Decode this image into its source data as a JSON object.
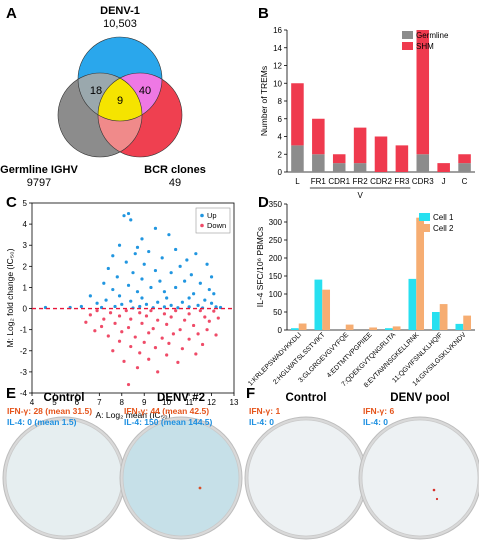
{
  "panels": {
    "A": {
      "letter": "A",
      "sets": [
        {
          "name": "DENV-1",
          "count": "10,503",
          "color": "#2aa7ec"
        },
        {
          "name": "Germline IGHV",
          "count": "9797",
          "color": "#8c8c8c"
        },
        {
          "name": "BCR clones",
          "count": "49",
          "color": "#ef4050"
        }
      ],
      "intersections": {
        "denv_germline": "18",
        "denv_bcr": "40",
        "all": "9"
      }
    },
    "B": {
      "letter": "B",
      "chart_data": {
        "type": "bar",
        "categories": [
          "L",
          "FR1",
          "CDR1",
          "FR2",
          "CDR2",
          "FR3",
          "CDR3",
          "J",
          "C"
        ],
        "series": [
          {
            "name": "Germline",
            "values": [
              3,
              2,
              1,
              1,
              0,
              0,
              2,
              0,
              1
            ],
            "color": "#8c8c8c"
          },
          {
            "name": "SHM",
            "values": [
              7,
              4,
              1,
              4,
              4,
              3,
              14,
              1,
              1
            ],
            "color": "#ef3a4e"
          }
        ],
        "stacked": true,
        "ylabel": "Number of TREMs",
        "ylim": [
          0,
          16
        ],
        "yticks": [
          0,
          2,
          4,
          6,
          8,
          10,
          12,
          14,
          16
        ],
        "group_label": "V",
        "legend_position": "top-right"
      }
    },
    "C": {
      "letter": "C",
      "chart_data": {
        "type": "scatter",
        "xlabel": "A: Log₂ mean (IC₅₀)",
        "ylabel": "M: Log₂ fold change (IC₅₀)",
        "xlim": [
          4,
          13
        ],
        "ylim": [
          -4,
          5
        ],
        "xticks": [
          4,
          5,
          6,
          7,
          8,
          9,
          10,
          11,
          12,
          13
        ],
        "yticks": [
          -4,
          -3,
          -2,
          -1,
          0,
          1,
          2,
          3,
          4,
          5
        ],
        "reference_line_y": 0,
        "legend_position": "top-right",
        "series": [
          {
            "name": "Up",
            "color": "#2196e0",
            "points": [
              [
                8.1,
                4.4
              ],
              [
                8.3,
                4.5
              ],
              [
                8.4,
                4.2
              ],
              [
                9.5,
                3.8
              ],
              [
                10.1,
                3.5
              ],
              [
                8.9,
                3.3
              ],
              [
                7.9,
                3.0
              ],
              [
                8.7,
                2.9
              ],
              [
                9.2,
                2.7
              ],
              [
                10.4,
                2.8
              ],
              [
                11.3,
                2.6
              ],
              [
                8.6,
                2.6
              ],
              [
                9.8,
                2.4
              ],
              [
                7.6,
                2.5
              ],
              [
                10.9,
                2.3
              ],
              [
                8.2,
                2.2
              ],
              [
                9.0,
                2.1
              ],
              [
                10.6,
                2.0
              ],
              [
                11.8,
                2.1
              ],
              [
                7.4,
                1.9
              ],
              [
                9.5,
                1.8
              ],
              [
                8.5,
                1.7
              ],
              [
                10.2,
                1.7
              ],
              [
                11.1,
                1.6
              ],
              [
                12.0,
                1.5
              ],
              [
                7.8,
                1.5
              ],
              [
                8.9,
                1.4
              ],
              [
                9.7,
                1.3
              ],
              [
                10.8,
                1.3
              ],
              [
                11.5,
                1.2
              ],
              [
                7.2,
                1.2
              ],
              [
                8.3,
                1.1
              ],
              [
                9.3,
                1.0
              ],
              [
                10.4,
                1.0
              ],
              [
                11.9,
                0.9
              ],
              [
                7.6,
                0.9
              ],
              [
                8.7,
                0.8
              ],
              [
                9.9,
                0.8
              ],
              [
                11.2,
                0.7
              ],
              [
                12.1,
                0.7
              ],
              [
                6.6,
                0.6
              ],
              [
                7.9,
                0.6
              ],
              [
                8.9,
                0.5
              ],
              [
                10.0,
                0.5
              ],
              [
                11.0,
                0.5
              ],
              [
                11.7,
                0.4
              ],
              [
                7.3,
                0.4
              ],
              [
                8.4,
                0.35
              ],
              [
                9.6,
                0.3
              ],
              [
                10.7,
                0.3
              ],
              [
                12.0,
                0.25
              ],
              [
                6.9,
                0.25
              ],
              [
                8.0,
                0.2
              ],
              [
                9.1,
                0.2
              ],
              [
                10.2,
                0.15
              ],
              [
                11.4,
                0.15
              ],
              [
                6.2,
                0.1
              ],
              [
                7.7,
                0.1
              ],
              [
                8.8,
                0.1
              ],
              [
                9.9,
                0.08
              ],
              [
                11.0,
                0.08
              ],
              [
                12.2,
                0.08
              ],
              [
                4.6,
                0.05
              ],
              [
                5.7,
                0.05
              ],
              [
                7.1,
                0.05
              ],
              [
                9.4,
                0.04
              ],
              [
                10.5,
                0.04
              ],
              [
                11.6,
                0.03
              ],
              [
                8.5,
                0.03
              ],
              [
                12.4,
                0.05
              ]
            ]
          },
          {
            "name": "Down",
            "color": "#ef4b68",
            "points": [
              [
                6.9,
                -0.1
              ],
              [
                8.2,
                -0.1
              ],
              [
                9.3,
                -0.1
              ],
              [
                10.4,
                -0.1
              ],
              [
                11.5,
                -0.1
              ],
              [
                12.1,
                -0.12
              ],
              [
                7.5,
                -0.2
              ],
              [
                8.8,
                -0.2
              ],
              [
                9.9,
                -0.25
              ],
              [
                11.0,
                -0.25
              ],
              [
                6.6,
                -0.3
              ],
              [
                7.9,
                -0.35
              ],
              [
                9.1,
                -0.35
              ],
              [
                10.2,
                -0.4
              ],
              [
                11.7,
                -0.4
              ],
              [
                12.3,
                -0.45
              ],
              [
                7.2,
                -0.5
              ],
              [
                8.4,
                -0.5
              ],
              [
                9.6,
                -0.55
              ],
              [
                10.8,
                -0.55
              ],
              [
                11.9,
                -0.6
              ],
              [
                6.4,
                -0.65
              ],
              [
                7.7,
                -0.7
              ],
              [
                8.9,
                -0.7
              ],
              [
                10.0,
                -0.75
              ],
              [
                11.2,
                -0.8
              ],
              [
                7.1,
                -0.85
              ],
              [
                8.3,
                -0.9
              ],
              [
                9.4,
                -0.95
              ],
              [
                10.6,
                -1.0
              ],
              [
                11.8,
                -1.0
              ],
              [
                6.8,
                -1.05
              ],
              [
                8.0,
                -1.1
              ],
              [
                9.2,
                -1.15
              ],
              [
                10.3,
                -1.2
              ],
              [
                11.4,
                -1.2
              ],
              [
                12.2,
                -1.25
              ],
              [
                7.4,
                -1.3
              ],
              [
                8.6,
                -1.35
              ],
              [
                9.8,
                -1.4
              ],
              [
                11.0,
                -1.45
              ],
              [
                7.9,
                -1.55
              ],
              [
                9.0,
                -1.6
              ],
              [
                10.1,
                -1.65
              ],
              [
                11.6,
                -1.7
              ],
              [
                8.4,
                -1.8
              ],
              [
                9.5,
                -1.85
              ],
              [
                10.7,
                -1.9
              ],
              [
                7.6,
                -2.0
              ],
              [
                8.8,
                -2.1
              ],
              [
                10.0,
                -2.2
              ],
              [
                11.3,
                -2.15
              ],
              [
                9.2,
                -2.4
              ],
              [
                8.1,
                -2.5
              ],
              [
                10.5,
                -2.55
              ],
              [
                8.7,
                -2.8
              ],
              [
                9.6,
                -3.0
              ],
              [
                8.3,
                -3.6
              ]
            ]
          }
        ]
      }
    },
    "D": {
      "letter": "D",
      "chart_data": {
        "type": "bar",
        "categories": [
          "1:KRLEPSWADVKKDLI",
          "2:HGLWATSLSSTVIKT",
          "3:GLGRGEVGVYFQE",
          "4:EDTMTVPGPIIEE",
          "7:QDEKGVTQNGRLITA",
          "8:EVTAWNSGKELLRNK",
          "11:QGVIFSNLKLHQIF",
          "14:GIVSILGSKLVKNDV"
        ],
        "series": [
          {
            "name": "Cell 1",
            "values": [
              5,
              140,
              0,
              0,
              5,
              142,
              50,
              17
            ],
            "color": "#27e0f0"
          },
          {
            "name": "Cell 2",
            "values": [
              18,
              112,
              15,
              7,
              10,
              312,
              72,
              40
            ],
            "color": "#f6ad72"
          }
        ],
        "ylabel": "IL-4 SFC/10⁶ PBMCs",
        "ylim": [
          0,
          350
        ],
        "yticks": [
          0,
          50,
          100,
          150,
          200,
          250,
          300,
          350
        ],
        "legend_position": "top-right"
      }
    },
    "E": {
      "letter": "E",
      "wells": [
        {
          "title": "Control",
          "ifn": "IFN-γ: 28 (mean 31.5)",
          "il4": "IL-4: 0 (mean 1.5)",
          "tint": "#e6eef0"
        },
        {
          "title": "DENV #2",
          "ifn": "IFN-γ: 44 (mean 42.5)",
          "il4": "IL-4: 150 (mean 144.5)",
          "tint": "#c6e0e8"
        }
      ]
    },
    "F": {
      "letter": "F",
      "wells": [
        {
          "title": "Control",
          "ifn": "IFN-γ: 1",
          "il4": "IL-4: 0",
          "tint": "#edf1f3"
        },
        {
          "title": "DENV pool",
          "ifn": "IFN-γ: 6",
          "il4": "IL-4: 0",
          "tint": "#edf1f3"
        }
      ]
    }
  },
  "colors": {
    "ifn_text": "#e5541b",
    "il4_text": "#1c8fe0"
  }
}
